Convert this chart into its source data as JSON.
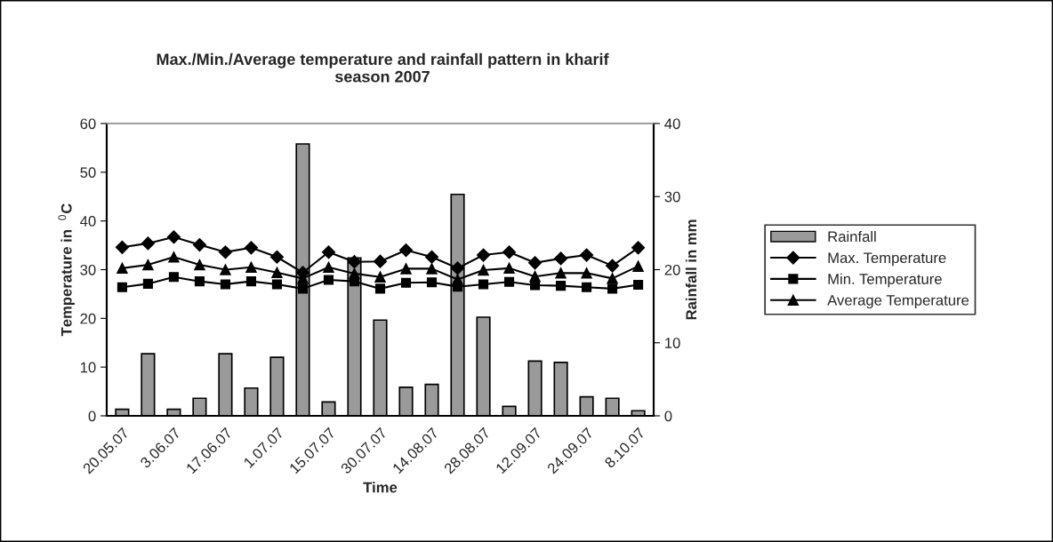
{
  "chart_data": {
    "type": "line",
    "title": "Max./Min./Average temperature and rainfall pattern in kharif\nseason 2007",
    "xlabel": "Time",
    "ylabel": "Temperature in  $^{0}$C",
    "y2label": "Rainfall in mm",
    "categories": [
      "20.05.07",
      null,
      "3.06.07",
      null,
      "17.06.07",
      null,
      "1.07.07",
      null,
      "15.07.07",
      null,
      "30.07.07",
      null,
      "14.08.07",
      null,
      "28.08.07",
      null,
      "12.09.07",
      null,
      "24.09.07",
      null,
      "8.10.07"
    ],
    "series": [
      {
        "name": "Rainfall",
        "type": "bar",
        "axis": "y2",
        "color": "#9a9a9a",
        "values": [
          0.9,
          8.5,
          0.9,
          2.4,
          8.5,
          3.8,
          8.0,
          37.2,
          1.9,
          21.6,
          13.1,
          3.9,
          4.3,
          30.3,
          13.5,
          1.3,
          7.5,
          7.3,
          2.6,
          2.4,
          0.7
        ]
      },
      {
        "name": "Max. Temperature",
        "marker": "diamond",
        "color": "#000000",
        "values": [
          34.6,
          35.4,
          36.7,
          35.1,
          33.6,
          34.5,
          32.6,
          29.4,
          33.6,
          31.6,
          31.7,
          34.0,
          32.6,
          30.3,
          33.0,
          33.6,
          31.4,
          32.3,
          33.0,
          30.8,
          34.5
        ]
      },
      {
        "name": "Min. Temperature",
        "marker": "square",
        "color": "#000000",
        "values": [
          26.4,
          27.1,
          28.5,
          27.6,
          27.0,
          27.6,
          27.0,
          26.1,
          27.9,
          27.6,
          26.1,
          27.3,
          27.4,
          26.5,
          27.0,
          27.5,
          26.8,
          26.7,
          26.4,
          26.1,
          26.9
        ]
      },
      {
        "name": "Average Temperature",
        "marker": "triangle",
        "color": "#000000",
        "values": [
          30.3,
          31.0,
          32.6,
          31.0,
          30.0,
          30.5,
          29.4,
          28.2,
          30.5,
          29.2,
          28.5,
          30.2,
          30.2,
          28.0,
          29.9,
          30.3,
          28.6,
          29.3,
          29.3,
          28.2,
          30.7
        ]
      }
    ],
    "ylim": [
      0,
      60
    ],
    "yticks": [
      0,
      10,
      20,
      30,
      40,
      50,
      60
    ],
    "y2lim": [
      0,
      40
    ],
    "y2ticks": [
      0,
      10,
      20,
      30,
      40
    ],
    "grid": false,
    "legend": "right"
  }
}
